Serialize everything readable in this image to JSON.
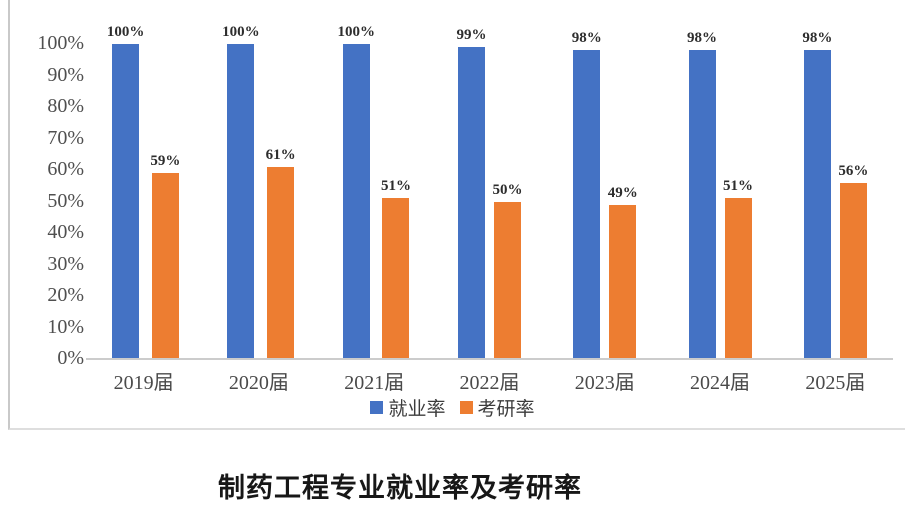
{
  "chart_data": {
    "type": "bar",
    "title": "制药工程专业就业率及考研率",
    "categories": [
      "2019届",
      "2020届",
      "2021届",
      "2022届",
      "2023届",
      "2024届",
      "2025届"
    ],
    "series": [
      {
        "name": "就业率",
        "color": "#4472C4",
        "values": [
          100,
          100,
          100,
          99,
          98,
          98,
          98
        ],
        "data_labels": [
          "100%",
          "100%",
          "100%",
          "99%",
          "98%",
          "98%",
          "98%"
        ]
      },
      {
        "name": "考研率",
        "color": "#ED7D31",
        "values": [
          59,
          61,
          51,
          50,
          49,
          51,
          56
        ],
        "data_labels": [
          "59%",
          "61%",
          "51%",
          "50%",
          "49%",
          "51%",
          "56%"
        ]
      }
    ],
    "xlabel": "",
    "ylabel": "",
    "ylim": [
      0,
      100
    ],
    "y_ticks": [
      "0%",
      "10%",
      "20%",
      "30%",
      "40%",
      "50%",
      "60%",
      "70%",
      "80%",
      "90%",
      "100%"
    ],
    "grid": false,
    "legend_position": "bottom",
    "data_labels_shown": true
  },
  "colors": {
    "series_employment": "#4472C4",
    "series_gradexam": "#ED7D31",
    "axis_line": "#cccccc",
    "frame_border": "#c9c9c9",
    "tick_label": "#4f4f4f",
    "title_text": "#171717"
  }
}
